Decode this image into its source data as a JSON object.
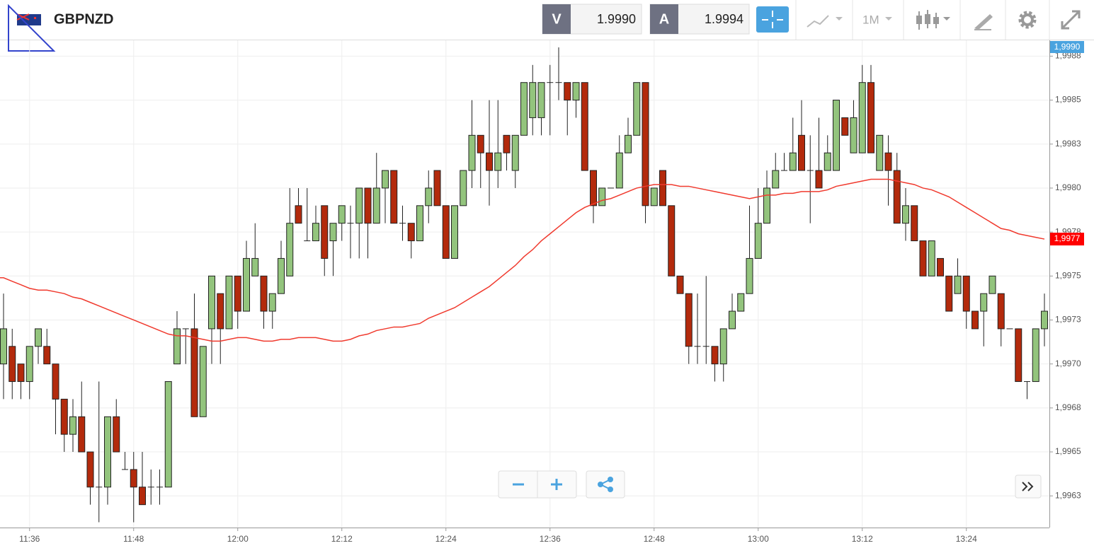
{
  "chart_data": {
    "type": "candlestick",
    "title": "GBPNZD",
    "bid_label": "V",
    "bid": "1.9990",
    "ask_label": "A",
    "ask": "1.9994",
    "timeframe": "1M",
    "price_tag": "1,9990",
    "ma_tag": "1,9977",
    "up_color": "#93c47d",
    "down_color": "#b32a0c",
    "grid": true,
    "ylim": [
      1.99607,
      1.99884
    ],
    "yticks": [
      {
        "value": 1.99625,
        "label": "1,9963"
      },
      {
        "value": 1.9965,
        "label": "1,9965"
      },
      {
        "value": 1.99675,
        "label": "1,9968"
      },
      {
        "value": 1.997,
        "label": "1,9970"
      },
      {
        "value": 1.99725,
        "label": "1,9973"
      },
      {
        "value": 1.9975,
        "label": "1,9975"
      },
      {
        "value": 1.99775,
        "label": "1,9978"
      },
      {
        "value": 1.998,
        "label": "1,9980"
      },
      {
        "value": 1.99825,
        "label": "1,9983"
      },
      {
        "value": 1.9985,
        "label": "1,9985"
      },
      {
        "value": 1.99875,
        "label": "1,9988"
      }
    ],
    "categories": [
      null,
      null,
      null,
      "11:36",
      null,
      null,
      null,
      null,
      null,
      null,
      null,
      null,
      null,
      null,
      null,
      "11:48",
      null,
      null,
      null,
      null,
      null,
      null,
      null,
      null,
      null,
      null,
      null,
      "12:00",
      null,
      null,
      null,
      null,
      null,
      null,
      null,
      null,
      null,
      null,
      null,
      "12:12",
      null,
      null,
      null,
      null,
      null,
      null,
      null,
      null,
      null,
      null,
      null,
      "12:24",
      null,
      null,
      null,
      null,
      null,
      null,
      null,
      null,
      null,
      null,
      null,
      "12:36",
      null,
      null,
      null,
      null,
      null,
      null,
      null,
      null,
      null,
      null,
      null,
      "12:48",
      null,
      null,
      null,
      null,
      null,
      null,
      null,
      null,
      null,
      null,
      null,
      "13:00",
      null,
      null,
      null,
      null,
      null,
      null,
      null,
      null,
      null,
      null,
      null,
      "13:12",
      null,
      null,
      null,
      null,
      null,
      null,
      null,
      null,
      null,
      null,
      null,
      "13:24",
      null,
      null,
      null,
      null,
      null,
      null,
      null,
      null,
      null
    ],
    "open": [
      1.997,
      1.9971,
      1.997,
      1.9969,
      1.9971,
      1.9971,
      1.997,
      1.9968,
      1.9966,
      1.9967,
      1.9965,
      1.9963,
      1.9963,
      1.9967,
      1.9964,
      1.9964,
      1.9963,
      1.9963,
      1.9963,
      1.9963,
      1.997,
      1.9972,
      1.9972,
      1.9967,
      1.9972,
      1.9974,
      1.9972,
      1.9975,
      1.9973,
      1.9975,
      1.9975,
      1.9973,
      1.9974,
      1.9975,
      1.9979,
      1.9977,
      1.9977,
      1.9979,
      1.9977,
      1.9978,
      1.9978,
      1.9978,
      1.998,
      1.9978,
      1.998,
      1.9981,
      1.9978,
      1.9978,
      1.9977,
      1.9979,
      1.9981,
      1.9979,
      1.9976,
      1.9979,
      1.9981,
      1.9983,
      1.9982,
      1.9981,
      1.9983,
      1.9981,
      1.9983,
      1.9984,
      1.9984,
      1.9986,
      1.9986,
      1.9986,
      1.9985,
      1.9986,
      1.9981,
      1.9979,
      1.998,
      1.998,
      1.9982,
      1.9983,
      1.9986,
      1.9979,
      1.9981,
      1.9979,
      1.9975,
      1.9974,
      1.9971,
      1.9971,
      1.9971,
      1.997,
      1.9972,
      1.9973,
      1.9974,
      1.9976,
      1.9978,
      1.998,
      1.9981,
      1.9981,
      1.9983,
      1.9981,
      1.9981,
      1.9981,
      1.9981,
      1.9984,
      1.9982,
      1.9982,
      1.9986,
      1.9981,
      1.9982,
      1.9981,
      1.9978,
      1.9979,
      1.9977,
      1.9975,
      1.9976,
      1.9975,
      1.9974,
      1.9975,
      1.9973,
      1.9973,
      1.9974,
      1.9974,
      1.9972,
      1.9972,
      1.9969,
      1.9969,
      1.9972
    ],
    "high": [
      1.9974,
      1.9972,
      1.997,
      1.9971,
      1.9972,
      1.9972,
      1.997,
      1.9968,
      1.9968,
      1.9969,
      1.9965,
      1.9969,
      1.9967,
      1.9968,
      1.9965,
      1.9965,
      1.9965,
      1.9964,
      1.9964,
      1.9969,
      1.9973,
      1.9972,
      1.9974,
      1.9971,
      1.9975,
      1.9974,
      1.9975,
      1.9975,
      1.9977,
      1.9978,
      1.9975,
      1.9974,
      1.9977,
      1.998,
      1.998,
      1.998,
      1.9979,
      1.9979,
      1.9978,
      1.9979,
      1.9979,
      1.998,
      1.998,
      1.9982,
      1.9981,
      1.9981,
      1.9979,
      1.9978,
      1.9979,
      1.9981,
      1.9981,
      1.9979,
      1.9979,
      1.9981,
      1.9985,
      1.9983,
      1.9985,
      1.9985,
      1.9983,
      1.9983,
      1.9986,
      1.9987,
      1.9986,
      1.9987,
      1.9988,
      1.9986,
      1.9986,
      1.9986,
      1.9981,
      1.998,
      1.998,
      1.9983,
      1.9984,
      1.9986,
      1.9986,
      1.998,
      1.9981,
      1.9979,
      1.9975,
      1.9974,
      1.9974,
      1.9975,
      1.9971,
      1.9972,
      1.9974,
      1.9974,
      1.9979,
      1.998,
      1.9981,
      1.9982,
      1.9982,
      1.9984,
      1.9985,
      1.9983,
      1.9984,
      1.9983,
      1.9985,
      1.9984,
      1.9985,
      1.9987,
      1.9987,
      1.9983,
      1.9983,
      1.9982,
      1.998,
      1.9979,
      1.9977,
      1.9977,
      1.9976,
      1.9975,
      1.9976,
      1.9975,
      1.9973,
      1.9974,
      1.9975,
      1.9974,
      1.9972,
      1.9972,
      1.9969,
      1.9972,
      1.9974
    ],
    "low": [
      1.9968,
      1.9968,
      1.9968,
      1.9968,
      1.997,
      1.997,
      1.9966,
      1.9965,
      1.9965,
      1.9965,
      1.9962,
      1.9961,
      1.9962,
      1.9965,
      1.9964,
      1.9961,
      1.9962,
      1.9962,
      1.9962,
      1.9963,
      1.997,
      1.997,
      1.9967,
      1.9967,
      1.997,
      1.997,
      1.9972,
      1.9972,
      1.9973,
      1.9975,
      1.9972,
      1.9972,
      1.9974,
      1.9975,
      1.9978,
      1.9977,
      1.9977,
      1.9975,
      1.9975,
      1.9977,
      1.9976,
      1.9976,
      1.9976,
      1.9978,
      1.9978,
      1.9978,
      1.9977,
      1.9976,
      1.9977,
      1.9978,
      1.9979,
      1.9976,
      1.9976,
      1.9979,
      1.998,
      1.998,
      1.9979,
      1.998,
      1.9981,
      1.998,
      1.9983,
      1.9983,
      1.9983,
      1.9983,
      1.9985,
      1.9983,
      1.9984,
      1.9981,
      1.9978,
      1.9979,
      1.998,
      1.998,
      1.9982,
      1.9983,
      1.9978,
      1.9979,
      1.9979,
      1.9975,
      1.9974,
      1.997,
      1.997,
      1.997,
      1.9969,
      1.9969,
      1.9972,
      1.9973,
      1.9974,
      1.9976,
      1.9978,
      1.998,
      1.9981,
      1.9981,
      1.9981,
      1.9978,
      1.998,
      1.9981,
      1.9981,
      1.9983,
      1.9982,
      1.9982,
      1.9982,
      1.9981,
      1.9979,
      1.9978,
      1.9977,
      1.9977,
      1.9975,
      1.9975,
      1.9975,
      1.9973,
      1.9974,
      1.9972,
      1.9972,
      1.9971,
      1.9974,
      1.9971,
      1.9972,
      1.9969,
      1.9968,
      1.9969,
      1.9971
    ],
    "close": [
      1.9972,
      1.9969,
      1.9969,
      1.9971,
      1.9972,
      1.997,
      1.9968,
      1.9966,
      1.9967,
      1.9965,
      1.9963,
      1.9963,
      1.9967,
      1.9965,
      1.9964,
      1.9963,
      1.9962,
      1.9963,
      1.9963,
      1.9969,
      1.9972,
      1.9972,
      1.9967,
      1.9971,
      1.9975,
      1.9972,
      1.9975,
      1.9973,
      1.9976,
      1.9976,
      1.9973,
      1.9974,
      1.9976,
      1.9978,
      1.9978,
      1.9977,
      1.9978,
      1.9976,
      1.9978,
      1.9979,
      1.9978,
      1.998,
      1.9978,
      1.998,
      1.9981,
      1.9978,
      1.9978,
      1.9977,
      1.9979,
      1.998,
      1.9979,
      1.9976,
      1.9979,
      1.9981,
      1.9983,
      1.9982,
      1.9981,
      1.9982,
      1.9982,
      1.9983,
      1.9986,
      1.9986,
      1.9986,
      1.9986,
      1.9986,
      1.9985,
      1.9986,
      1.9981,
      1.9979,
      1.998,
      1.998,
      1.9982,
      1.9983,
      1.9986,
      1.9979,
      1.998,
      1.9979,
      1.9975,
      1.9974,
      1.9971,
      1.9971,
      1.9971,
      1.997,
      1.9972,
      1.9973,
      1.9974,
      1.9976,
      1.9978,
      1.998,
      1.9981,
      1.9981,
      1.9982,
      1.9981,
      1.9981,
      1.998,
      1.9982,
      1.9985,
      1.9983,
      1.9984,
      1.9986,
      1.9982,
      1.9983,
      1.9981,
      1.9978,
      1.9979,
      1.9977,
      1.9975,
      1.9977,
      1.9975,
      1.9973,
      1.9975,
      1.9973,
      1.9972,
      1.9974,
      1.9975,
      1.9972,
      1.9972,
      1.9969,
      1.9969,
      1.9972,
      1.9973
    ],
    "ma": {
      "color": "#f03a2e",
      "values": [
        1.99749,
        1.99747,
        1.99745,
        1.99743,
        1.99742,
        1.99742,
        1.99741,
        1.9974,
        1.99738,
        1.99737,
        1.99735,
        1.99733,
        1.99731,
        1.99729,
        1.99727,
        1.99725,
        1.99723,
        1.99721,
        1.99719,
        1.99717,
        1.99716,
        1.99716,
        1.99715,
        1.99714,
        1.99713,
        1.99713,
        1.99714,
        1.99715,
        1.99715,
        1.99714,
        1.99713,
        1.99713,
        1.99714,
        1.99714,
        1.99715,
        1.99715,
        1.99715,
        1.99714,
        1.99713,
        1.99713,
        1.99714,
        1.99716,
        1.99717,
        1.99719,
        1.9972,
        1.99721,
        1.99721,
        1.99722,
        1.99723,
        1.99726,
        1.99728,
        1.9973,
        1.99732,
        1.99735,
        1.99738,
        1.99741,
        1.99744,
        1.99748,
        1.99752,
        1.99756,
        1.99761,
        1.99765,
        1.9977,
        1.99774,
        1.99778,
        1.99782,
        1.99786,
        1.99789,
        1.99791,
        1.99793,
        1.99794,
        1.99796,
        1.99798,
        1.998,
        1.99801,
        1.99802,
        1.99802,
        1.99802,
        1.99801,
        1.99801,
        1.998,
        1.99799,
        1.99798,
        1.99797,
        1.99796,
        1.99795,
        1.99794,
        1.99795,
        1.99796,
        1.99796,
        1.99797,
        1.99797,
        1.99798,
        1.99798,
        1.99798,
        1.99799,
        1.99801,
        1.99802,
        1.99803,
        1.99804,
        1.99805,
        1.99805,
        1.99805,
        1.99804,
        1.99803,
        1.99802,
        1.998,
        1.99799,
        1.99797,
        1.99795,
        1.99792,
        1.99789,
        1.99786,
        1.99783,
        1.9978,
        1.99777,
        1.99776,
        1.99774,
        1.99773,
        1.99772,
        1.99771
      ]
    }
  }
}
